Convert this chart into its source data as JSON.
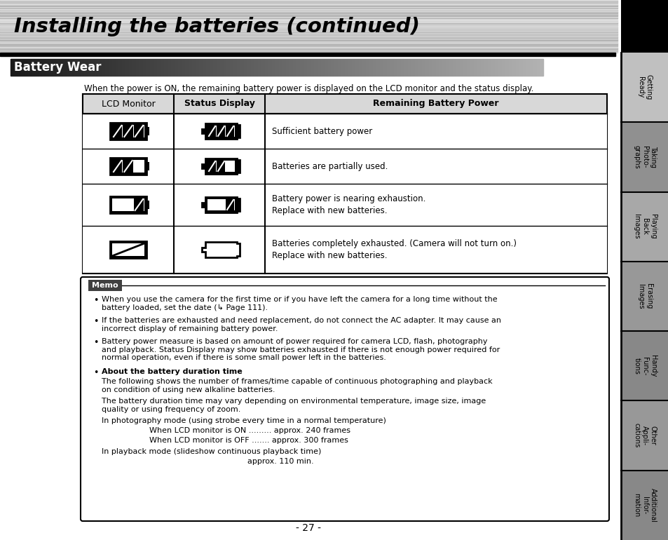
{
  "page_title": "Installing the batteries (continued)",
  "section_title": "Battery Wear",
  "intro_text": "When the power is ON, the remaining battery power is displayed on the LCD monitor and the status display.",
  "table_headers": [
    "LCD Monitor",
    "Status Display",
    "Remaining Battery Power"
  ],
  "row_descriptions": [
    "Sufficient battery power",
    "Batteries are partially used.",
    "Battery power is nearing exhaustion.\nReplace with new batteries.",
    "Batteries completely exhausted. (Camera will not turn on.)\nReplace with new batteries."
  ],
  "memo_bullets": [
    "When you use the camera for the first time or if you have left the camera for a long time without the\nbattery loaded, set the date (↳ Page 111).",
    "If the batteries are exhausted and need replacement, do not connect the AC adapter. It may cause an\nincorrect display of remaining battery power.",
    "Battery power measure is based on amount of power required for camera LCD, flash, photography\nand playback. Status Display may show batteries exhausted if there is not enough power required for\nnormal operation, even if there is some small power left in the batteries."
  ],
  "about_battery_bold": "About the battery duration time",
  "about_battery_text1": "The following shows the number of frames/time capable of continuous photographing and playback\non condition of using new alkaline batteries.",
  "about_battery_text2": "The battery duration time may vary depending on environmental temperature, image size, image\nquality or using frequency of zoom.",
  "photo_mode_line": "In photography mode (using strobe every time in a normal temperature)",
  "photo_lcd_on": "When LCD monitor is ON ......... approx. 240 frames",
  "photo_lcd_off": "When LCD monitor is OFF ....... approx. 300 frames",
  "playback_line": "In playback mode (slideshow continuous playback time)",
  "playback_time": "approx. 110 min.",
  "page_number": "- 27 -",
  "sidebar_labels": [
    "Getting\nReady",
    "Taking\nPhoto-\ngraphs",
    "Playing\nBack\nImages",
    "Erasing\nImages",
    "Handy\nFunc-\ntions",
    "Other\nAppli-\ncations",
    "Additional\nInfor-\nmation"
  ],
  "fill_levels": [
    3,
    2,
    1,
    0
  ],
  "bg_color": "#ffffff"
}
